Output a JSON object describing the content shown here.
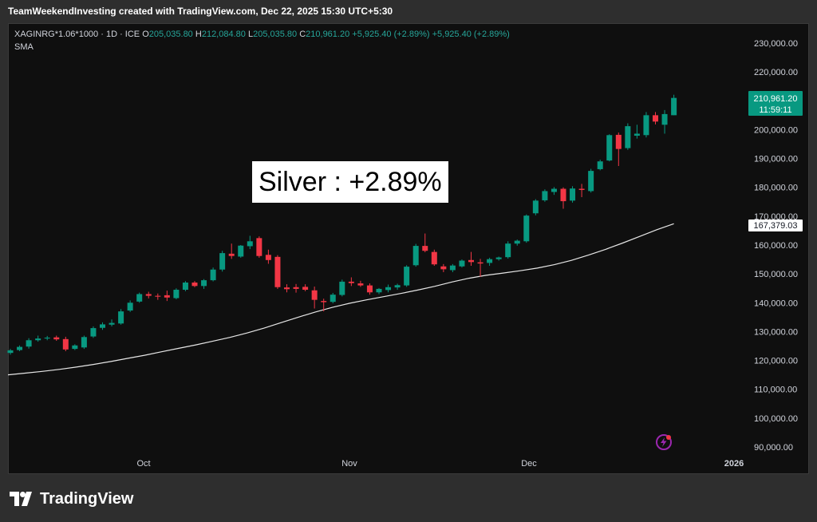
{
  "header": {
    "credit": "TeamWeekendInvesting created with TradingView.com, Dec 22, 2025 15:30 UTC+5:30"
  },
  "legend": {
    "symbol": "XAGINRG*1.06*1000 · 1D · ICE",
    "open_label": "O",
    "open_value": "205,035.80",
    "high_label": "H",
    "high_value": "212,084.80",
    "low_label": "L",
    "low_value": "205,035.80",
    "close_label": "C",
    "close_value": "210,961.20",
    "change": "+5,925.40 (+2.89%)",
    "change2": "+5,925.40 (+2.89%)",
    "indicator": "SMA"
  },
  "annotation": "Silver : +2.89%",
  "price_tag": {
    "price": "210,961.20",
    "countdown": "11:59:11",
    "color": "#089981"
  },
  "sma_tag": {
    "value": "167,379.03"
  },
  "footer": {
    "brand": "TradingView"
  },
  "colors": {
    "up": "#089981",
    "down": "#f23645",
    "sma": "#e6e6e6",
    "bg": "#0f0f0f",
    "axis_text": "#d1d4dc"
  },
  "chart_data": {
    "type": "candlestick",
    "x_tick_labels": [
      "Oct",
      "Nov",
      "Dec",
      "2026"
    ],
    "y_tick_labels": [
      "90,000.00",
      "100,000.00",
      "110,000.00",
      "120,000.00",
      "130,000.00",
      "140,000.00",
      "150,000.00",
      "160,000.00",
      "170,000.00",
      "180,000.00",
      "190,000.00",
      "200,000.00",
      "210,000.00",
      "220,000.00",
      "230,000.00"
    ],
    "ylim": [
      87000,
      237000
    ],
    "candles": [
      {
        "o": 122600,
        "h": 124000,
        "l": 122000,
        "c": 123500
      },
      {
        "o": 123600,
        "h": 125200,
        "l": 123200,
        "c": 124700
      },
      {
        "o": 124800,
        "h": 127700,
        "l": 124100,
        "c": 127000
      },
      {
        "o": 127000,
        "h": 128600,
        "l": 126500,
        "c": 127600
      },
      {
        "o": 127600,
        "h": 128500,
        "l": 127000,
        "c": 127900
      },
      {
        "o": 128000,
        "h": 128600,
        "l": 126800,
        "c": 127300
      },
      {
        "o": 127400,
        "h": 128200,
        "l": 123200,
        "c": 123800
      },
      {
        "o": 124000,
        "h": 125600,
        "l": 123600,
        "c": 125200
      },
      {
        "o": 124500,
        "h": 128600,
        "l": 124000,
        "c": 128100
      },
      {
        "o": 128300,
        "h": 131800,
        "l": 127800,
        "c": 131200
      },
      {
        "o": 131300,
        "h": 133200,
        "l": 130600,
        "c": 132500
      },
      {
        "o": 132400,
        "h": 134200,
        "l": 131800,
        "c": 133000
      },
      {
        "o": 132800,
        "h": 137800,
        "l": 132400,
        "c": 137000
      },
      {
        "o": 137300,
        "h": 140800,
        "l": 136800,
        "c": 140000
      },
      {
        "o": 140400,
        "h": 143500,
        "l": 140000,
        "c": 143000
      },
      {
        "o": 143000,
        "h": 143800,
        "l": 141500,
        "c": 142400
      },
      {
        "o": 142400,
        "h": 143200,
        "l": 141000,
        "c": 142100
      },
      {
        "o": 142600,
        "h": 144200,
        "l": 140600,
        "c": 141800
      },
      {
        "o": 141600,
        "h": 145000,
        "l": 141200,
        "c": 144500
      },
      {
        "o": 144500,
        "h": 147500,
        "l": 144000,
        "c": 147000
      },
      {
        "o": 147000,
        "h": 147500,
        "l": 145400,
        "c": 145800
      },
      {
        "o": 145800,
        "h": 148200,
        "l": 144800,
        "c": 147800
      },
      {
        "o": 147800,
        "h": 152200,
        "l": 147400,
        "c": 151500
      },
      {
        "o": 151500,
        "h": 158000,
        "l": 150800,
        "c": 157200
      },
      {
        "o": 157000,
        "h": 160500,
        "l": 155200,
        "c": 156200
      },
      {
        "o": 156000,
        "h": 160000,
        "l": 155600,
        "c": 159800
      },
      {
        "o": 159600,
        "h": 163200,
        "l": 158600,
        "c": 161300
      },
      {
        "o": 162400,
        "h": 163000,
        "l": 155600,
        "c": 156200
      },
      {
        "o": 156600,
        "h": 158400,
        "l": 153500,
        "c": 154800
      },
      {
        "o": 155900,
        "h": 156500,
        "l": 144800,
        "c": 145400
      },
      {
        "o": 145300,
        "h": 146400,
        "l": 143600,
        "c": 144700
      },
      {
        "o": 145400,
        "h": 146500,
        "l": 143500,
        "c": 144800
      },
      {
        "o": 145500,
        "h": 146400,
        "l": 144000,
        "c": 144500
      },
      {
        "o": 144300,
        "h": 145600,
        "l": 138000,
        "c": 141000
      },
      {
        "o": 140600,
        "h": 141400,
        "l": 137000,
        "c": 140200
      },
      {
        "o": 140300,
        "h": 143400,
        "l": 139800,
        "c": 142800
      },
      {
        "o": 142700,
        "h": 148000,
        "l": 142200,
        "c": 147300
      },
      {
        "o": 147300,
        "h": 148800,
        "l": 145800,
        "c": 146800
      },
      {
        "o": 146700,
        "h": 147600,
        "l": 145500,
        "c": 146000
      },
      {
        "o": 146000,
        "h": 146700,
        "l": 142800,
        "c": 143600
      },
      {
        "o": 143600,
        "h": 145100,
        "l": 143000,
        "c": 144800
      },
      {
        "o": 144400,
        "h": 146300,
        "l": 143600,
        "c": 145400
      },
      {
        "o": 145300,
        "h": 146600,
        "l": 144500,
        "c": 146100
      },
      {
        "o": 146000,
        "h": 153000,
        "l": 145500,
        "c": 152500
      },
      {
        "o": 153000,
        "h": 160400,
        "l": 152500,
        "c": 159700
      },
      {
        "o": 159700,
        "h": 164000,
        "l": 157500,
        "c": 158000
      },
      {
        "o": 157600,
        "h": 158400,
        "l": 152800,
        "c": 153300
      },
      {
        "o": 152600,
        "h": 153400,
        "l": 150600,
        "c": 151600
      },
      {
        "o": 151300,
        "h": 153400,
        "l": 150600,
        "c": 152900
      },
      {
        "o": 152600,
        "h": 155000,
        "l": 152200,
        "c": 154600
      },
      {
        "o": 154800,
        "h": 157600,
        "l": 152800,
        "c": 154100
      },
      {
        "o": 154000,
        "h": 155200,
        "l": 149000,
        "c": 153600
      },
      {
        "o": 153800,
        "h": 155600,
        "l": 152800,
        "c": 155100
      },
      {
        "o": 155100,
        "h": 156000,
        "l": 154600,
        "c": 155700
      },
      {
        "o": 155800,
        "h": 161300,
        "l": 155300,
        "c": 160500
      },
      {
        "o": 160500,
        "h": 161900,
        "l": 159800,
        "c": 161500
      },
      {
        "o": 161300,
        "h": 170600,
        "l": 160800,
        "c": 170200
      },
      {
        "o": 171000,
        "h": 175900,
        "l": 170300,
        "c": 175400
      },
      {
        "o": 175500,
        "h": 179300,
        "l": 175000,
        "c": 178700
      },
      {
        "o": 178400,
        "h": 180100,
        "l": 177400,
        "c": 179500
      },
      {
        "o": 179500,
        "h": 180000,
        "l": 172600,
        "c": 175200
      },
      {
        "o": 175400,
        "h": 180400,
        "l": 174700,
        "c": 179600
      },
      {
        "o": 179500,
        "h": 181200,
        "l": 176600,
        "c": 179100
      },
      {
        "o": 178700,
        "h": 186400,
        "l": 178200,
        "c": 185700
      },
      {
        "o": 186300,
        "h": 189600,
        "l": 185900,
        "c": 189000
      },
      {
        "o": 189300,
        "h": 198400,
        "l": 189000,
        "c": 198100
      },
      {
        "o": 198200,
        "h": 199000,
        "l": 187400,
        "c": 193300
      },
      {
        "o": 193600,
        "h": 202200,
        "l": 193000,
        "c": 201200
      },
      {
        "o": 197900,
        "h": 201700,
        "l": 196900,
        "c": 198600
      },
      {
        "o": 198100,
        "h": 206100,
        "l": 197300,
        "c": 205000
      },
      {
        "o": 205000,
        "h": 206100,
        "l": 201800,
        "c": 202800
      },
      {
        "o": 201700,
        "h": 206800,
        "l": 198600,
        "c": 205400
      },
      {
        "o": 205000,
        "h": 212100,
        "l": 205000,
        "c": 211000
      }
    ],
    "sma": [
      115000,
      115600,
      116200,
      116900,
      117700,
      118600,
      119600,
      120700,
      121800,
      123000,
      124200,
      125400,
      126700,
      128000,
      129500,
      131200,
      133100,
      135000,
      136800,
      138400,
      139800,
      141000,
      142100,
      143200,
      144400,
      145700,
      147200,
      148500,
      149500,
      150300,
      151100,
      152000,
      153200,
      154700,
      156500,
      158500,
      160700,
      163000,
      165300,
      167400
    ]
  }
}
